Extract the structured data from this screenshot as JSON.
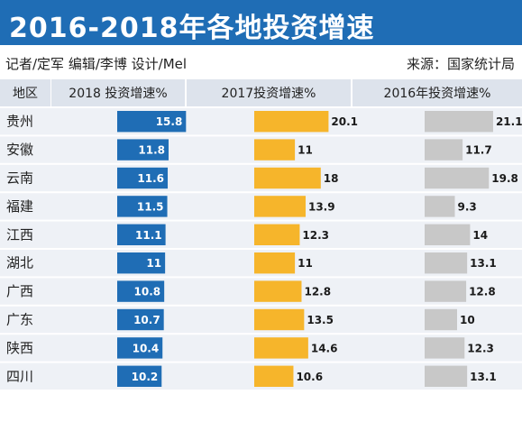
{
  "title": "2016-2018年各地投资增速",
  "credits": {
    "left": "记者/定军  编辑/李博  设计/Mel",
    "right": "来源：国家统计局"
  },
  "colors": {
    "title_bg": "#1f6db5",
    "header_bg": "#dde3ec",
    "row_bg": "#eef1f6",
    "s2018": "#1f6db5",
    "s2017": "#f6b52b",
    "s2016": "#c8c8c8",
    "label_2018": "#ffffff",
    "label_other": "#1a1a1a"
  },
  "chart_data": {
    "type": "bar",
    "orientation": "horizontal",
    "header_region": "地区",
    "categories": [
      "贵州",
      "安徽",
      "云南",
      "福建",
      "江西",
      "湖北",
      "广西",
      "广东",
      "陕西",
      "四川"
    ],
    "series": [
      {
        "name": "2018 投资增速%",
        "values": [
          15.8,
          11.8,
          11.6,
          11.5,
          11.1,
          11,
          10.8,
          10.7,
          10.4,
          10.2
        ],
        "labels": [
          "15.8",
          "11.8",
          "11.6",
          "11.5",
          "11.1",
          "11",
          "10.8",
          "10.7",
          "10.4",
          "10.2"
        ]
      },
      {
        "name": "2017投资增速%",
        "values": [
          20.1,
          11,
          18,
          13.9,
          12.3,
          11,
          12.8,
          13.5,
          14.6,
          10.6
        ],
        "labels": [
          "20.1",
          "11",
          "18",
          "13.9",
          "12.3",
          "11",
          "12.8",
          "13.5",
          "14.6",
          "10.6"
        ]
      },
      {
        "name": "2016年投资增速%",
        "values": [
          21.1,
          11.7,
          19.8,
          9.3,
          14,
          13.1,
          12.8,
          10,
          12.3,
          13.1
        ],
        "labels": [
          "21.1",
          "11.7",
          "19.8",
          "9.3",
          "14",
          "13.1",
          "12.8",
          "10",
          "12.3",
          "13.1"
        ]
      }
    ]
  }
}
